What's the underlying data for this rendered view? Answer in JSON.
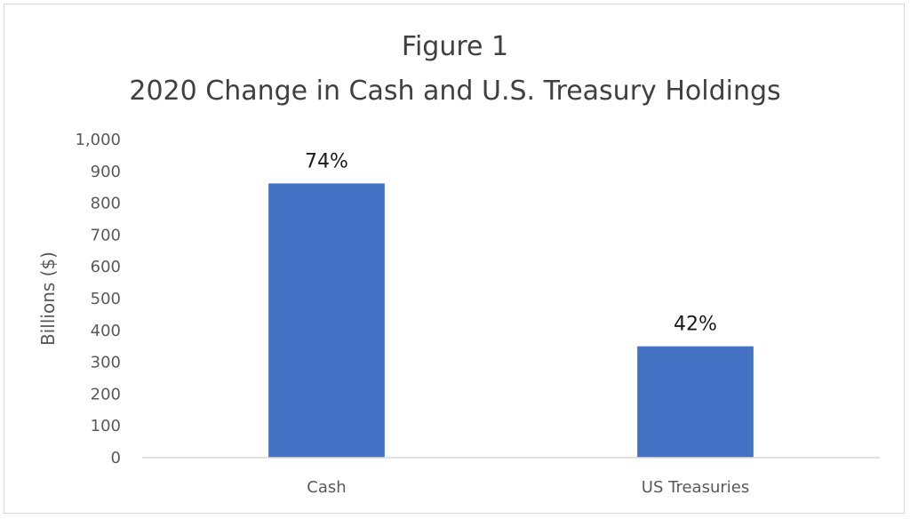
{
  "chart_data": {
    "type": "bar",
    "title_lines": [
      "Figure 1",
      "2020 Change in Cash and U.S. Treasury Holdings"
    ],
    "xlabel": "",
    "ylabel": "Billions ($)",
    "ylim": [
      0,
      1000
    ],
    "yticks": [
      0,
      100,
      200,
      300,
      400,
      500,
      600,
      700,
      800,
      900,
      1000
    ],
    "ytick_labels": [
      "0",
      "100",
      "200",
      "300",
      "400",
      "500",
      "600",
      "700",
      "800",
      "900",
      "1,000"
    ],
    "categories": [
      "Cash",
      "US Treasuries"
    ],
    "values": [
      862,
      350
    ],
    "data_labels": [
      "74%",
      "42%"
    ],
    "bar_color": "#4472c4",
    "grid": false,
    "legend": "none"
  }
}
